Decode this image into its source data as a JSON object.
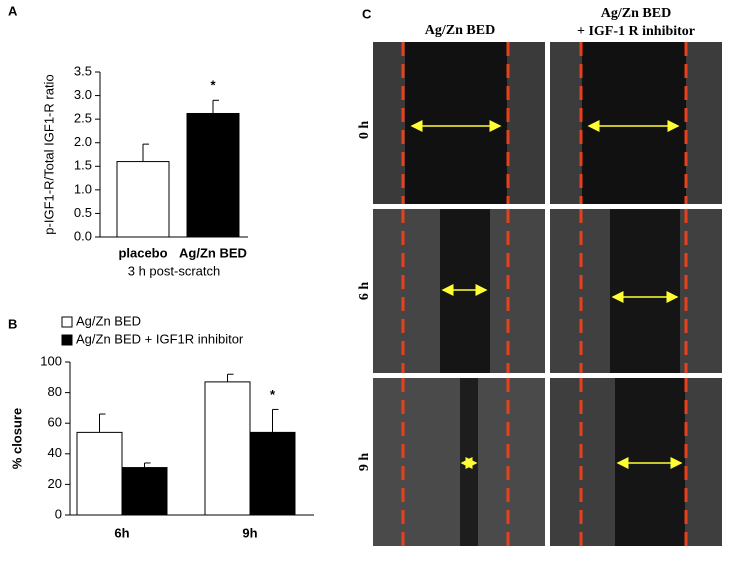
{
  "chart_data": [
    {
      "type": "bar",
      "panel_label": "A",
      "ylabel": "p-IGF1-R/Total IGF1-R ratio",
      "xlabel": "3 h post-scratch",
      "categories": [
        "placebo",
        "Ag/Zn BED"
      ],
      "series": [
        {
          "colors": [
            "#ffffff",
            "#000000"
          ],
          "values": [
            1.6,
            2.62
          ],
          "errors": [
            0.37,
            0.28
          ]
        }
      ],
      "ylim": [
        0,
        3.5
      ],
      "yticks": [
        {
          "value": 0,
          "label": "0.0"
        },
        0.5,
        {
          "value": 1,
          "label": "1.0"
        },
        1.5,
        {
          "value": 2,
          "label": "2.0"
        },
        2.5,
        {
          "value": 3,
          "label": "3.0"
        },
        3.5
      ],
      "annotation": "*"
    },
    {
      "type": "bar",
      "panel_label": "B",
      "ylabel": "% closure",
      "categories": [
        "6h",
        "9h"
      ],
      "series": [
        {
          "name": "Ag/Zn BED",
          "color": "#ffffff",
          "values": [
            54,
            87
          ],
          "errors": [
            12,
            5
          ]
        },
        {
          "name": "Ag/Zn BED + IGF1R inhibitor",
          "color": "#000000",
          "values": [
            31,
            54
          ],
          "errors": [
            3,
            15
          ]
        }
      ],
      "ylim": [
        0,
        100
      ],
      "yticks": [
        0,
        20,
        40,
        60,
        80,
        100
      ],
      "annotation": "*"
    }
  ],
  "panel_c": {
    "panel_label": "C",
    "columns": [
      "Ag/Zn BED",
      "Ag/Zn BED",
      "+ IGF-1 R inhibitor"
    ],
    "rows": [
      "0 h",
      "6 h",
      "9 h"
    ]
  }
}
